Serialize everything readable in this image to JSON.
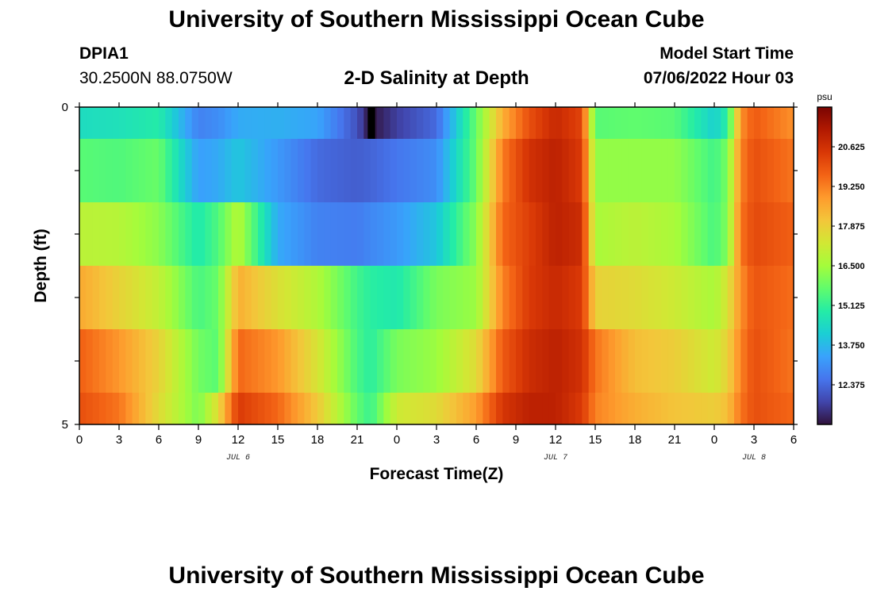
{
  "header": {
    "title": "University of Southern Mississippi Ocean Cube",
    "station_id": "DPIA1",
    "station_coords": "30.2500N  88.0750W",
    "plot_title": "2-D Salinity at Depth",
    "model_start_label": "Model Start Time",
    "model_start_value": "07/06/2022 Hour 03"
  },
  "footer": {
    "title": "University of Southern Mississippi Ocean Cube"
  },
  "colors": {
    "colormap": [
      "#30123b",
      "#4145ab",
      "#4675ed",
      "#39a2fc",
      "#1bcfd4",
      "#24eca6",
      "#61fc6c",
      "#a4fc3b",
      "#d1e834",
      "#f3c63a",
      "#fe9b2d",
      "#f36315",
      "#d93806",
      "#b11901",
      "#7a0402"
    ]
  },
  "chart_data": {
    "type": "heatmap",
    "title": "2-D Salinity at Depth",
    "xlabel": "Forecast Time(Z)",
    "ylabel": "Depth (ft)",
    "colorbar_unit": "psu",
    "colorbar_ticks": [
      "20.625",
      "19.250",
      "17.875",
      "16.500",
      "15.125",
      "13.750",
      "12.375"
    ],
    "colorbar_values": [
      20.625,
      19.25,
      17.875,
      16.5,
      15.125,
      13.75,
      12.375
    ],
    "zlim": [
      11.0,
      22.0
    ],
    "x_tick_labels": [
      "0",
      "3",
      "6",
      "9",
      "12",
      "15",
      "18",
      "21",
      "0",
      "3",
      "6",
      "9",
      "12",
      "15",
      "18",
      "21",
      "0",
      "3",
      "6"
    ],
    "date_labels": [
      {
        "label": "JUL 6",
        "hour_offset": 12
      },
      {
        "label": "JUL 7",
        "hour_offset": 36
      },
      {
        "label": "JUL 8",
        "hour_offset": 51
      }
    ],
    "y_tick_labels": [
      "0",
      "5"
    ],
    "ylim": [
      0,
      5
    ],
    "x_range_hours": [
      0,
      54
    ],
    "time_hours": [
      0,
      3,
      6,
      9,
      10.5,
      12,
      15,
      18,
      21,
      22,
      24,
      27,
      30,
      32,
      34,
      36,
      38,
      39,
      42,
      45,
      48,
      49,
      50,
      51,
      54
    ],
    "depth_rows": [
      "0-0.5 ft",
      "0.5-1.5 ft",
      "1.5-2.5 ft",
      "2.5-3.5 ft",
      "3.5-4.5 ft",
      "4.5-5 ft"
    ],
    "salinity": [
      [
        14.5,
        14.6,
        14.9,
        12.8,
        13.0,
        13.5,
        13.6,
        13.4,
        12.0,
        11.0,
        11.7,
        12.4,
        15.8,
        18.5,
        20.0,
        20.8,
        20.2,
        15.6,
        15.7,
        15.6,
        14.2,
        15.0,
        19.0,
        19.8,
        19.0
      ],
      [
        15.6,
        15.5,
        15.8,
        13.3,
        13.5,
        14.0,
        13.2,
        12.4,
        12.2,
        12.3,
        12.6,
        13.0,
        15.8,
        19.3,
        20.6,
        21.0,
        20.4,
        16.3,
        16.3,
        16.3,
        15.3,
        16.0,
        19.2,
        20.0,
        19.4
      ],
      [
        16.9,
        16.8,
        16.2,
        14.8,
        15.5,
        16.8,
        13.5,
        12.8,
        12.7,
        12.9,
        13.2,
        14.0,
        16.2,
        19.6,
        20.3,
        21.0,
        20.7,
        16.6,
        16.9,
        16.6,
        15.4,
        16.1,
        19.4,
        20.1,
        19.7
      ],
      [
        18.6,
        17.8,
        17.0,
        15.4,
        15.8,
        18.5,
        17.5,
        16.7,
        15.3,
        15.0,
        14.8,
        16.0,
        16.4,
        19.2,
        20.4,
        20.8,
        20.4,
        17.8,
        17.6,
        17.2,
        16.6,
        17.4,
        19.0,
        19.9,
        19.5
      ],
      [
        19.7,
        18.9,
        17.8,
        15.9,
        15.6,
        19.6,
        18.9,
        17.4,
        15.4,
        15.0,
        16.0,
        16.4,
        17.6,
        19.8,
        20.7,
        21.0,
        20.6,
        19.4,
        18.2,
        17.9,
        17.2,
        17.8,
        19.2,
        20.0,
        19.4
      ],
      [
        20.0,
        19.4,
        17.6,
        16.0,
        17.6,
        20.4,
        19.6,
        18.0,
        15.7,
        15.2,
        17.2,
        17.6,
        18.8,
        20.5,
        21.0,
        21.0,
        20.4,
        19.2,
        18.5,
        18.1,
        17.9,
        18.2,
        19.4,
        20.0,
        19.6
      ]
    ],
    "missing_patch": {
      "hour_start": 21.8,
      "hour_end": 22.3,
      "depth_row": 0
    },
    "grid": false
  }
}
